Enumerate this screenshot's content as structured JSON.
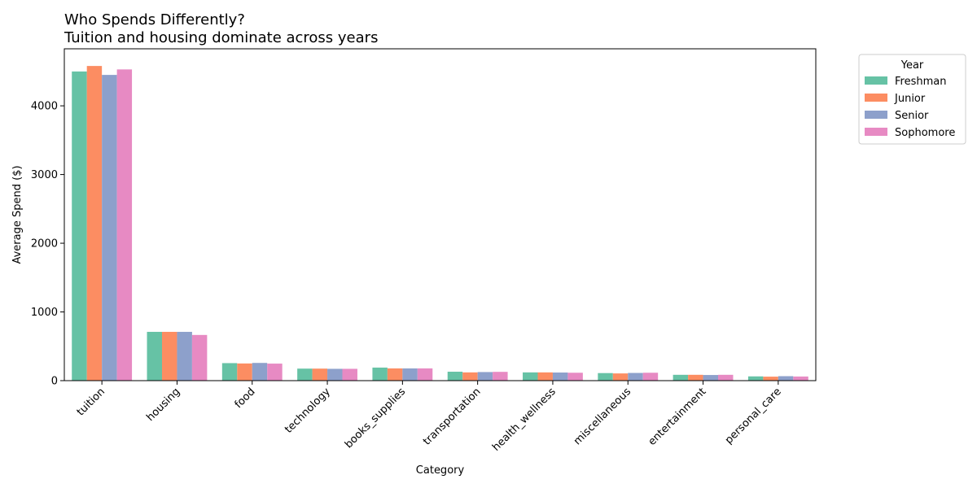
{
  "chart_data": {
    "type": "bar",
    "title": "Who Spends Differently?",
    "subtitle": "Tuition and housing dominate across years",
    "xlabel": "Category",
    "ylabel": "Average Spend ($)",
    "ylim": [
      0,
      4830
    ],
    "yticks": [
      0,
      1000,
      2000,
      3000,
      4000
    ],
    "grid": false,
    "legend": {
      "title": "Year",
      "placement": "outside-top-right"
    },
    "categories": [
      "tuition",
      "housing",
      "food",
      "technology",
      "books_supplies",
      "transportation",
      "health_wellness",
      "miscellaneous",
      "entertainment",
      "personal_care"
    ],
    "series": [
      {
        "name": "Freshman",
        "color": "#66c2a5",
        "values": [
          4500,
          710,
          255,
          175,
          190,
          130,
          120,
          110,
          85,
          62
        ]
      },
      {
        "name": "Junior",
        "color": "#fc8d62",
        "values": [
          4580,
          710,
          250,
          175,
          178,
          120,
          120,
          105,
          85,
          58
        ]
      },
      {
        "name": "Senior",
        "color": "#8da0cb",
        "values": [
          4450,
          710,
          258,
          172,
          178,
          125,
          118,
          112,
          82,
          65
        ]
      },
      {
        "name": "Sophomore",
        "color": "#e78ac3",
        "values": [
          4530,
          665,
          248,
          172,
          178,
          128,
          115,
          115,
          85,
          60
        ]
      }
    ]
  }
}
